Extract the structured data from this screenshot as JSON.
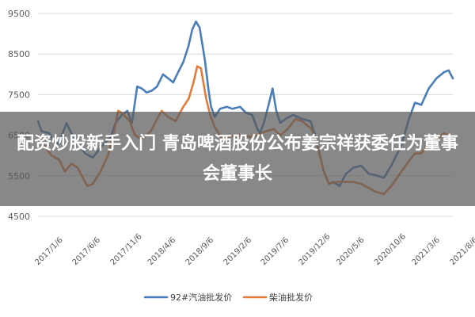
{
  "chart_data": {
    "type": "line",
    "ylim": [
      4500,
      9500
    ],
    "yticks": [
      4500,
      5500,
      6500,
      7500,
      8500,
      9500
    ],
    "xlim": [
      "2017-01-06",
      "2021-08-06"
    ],
    "x_tick_labels": [
      "2017/1/6",
      "2017/6/6",
      "2017/11/6",
      "2018/4/6",
      "2018/9/6",
      "2019/2/6",
      "2019/7/6",
      "2019/12/6",
      "2020/5/6",
      "2020/10/6",
      "2021/3/6",
      "2021/8/6"
    ],
    "grid": true,
    "legend_position": "bottom",
    "series": [
      {
        "name": "92#汽油批发价",
        "color": "#4a7ebb",
        "points": [
          [
            "2017-01-06",
            6850
          ],
          [
            "2017-01-20",
            6600
          ],
          [
            "2017-02-20",
            6550
          ],
          [
            "2017-03-20",
            6250
          ],
          [
            "2017-04-10",
            6450
          ],
          [
            "2017-05-01",
            6800
          ],
          [
            "2017-05-20",
            6550
          ],
          [
            "2017-06-15",
            6300
          ],
          [
            "2017-07-15",
            6050
          ],
          [
            "2017-08-15",
            5950
          ],
          [
            "2017-09-10",
            6150
          ],
          [
            "2017-10-01",
            6300
          ],
          [
            "2017-10-25",
            6450
          ],
          [
            "2017-11-15",
            6800
          ],
          [
            "2017-12-10",
            7000
          ],
          [
            "2018-01-01",
            7100
          ],
          [
            "2018-01-20",
            6800
          ],
          [
            "2018-02-10",
            7700
          ],
          [
            "2018-03-01",
            7650
          ],
          [
            "2018-03-20",
            7550
          ],
          [
            "2018-04-10",
            7600
          ],
          [
            "2018-05-01",
            7700
          ],
          [
            "2018-05-25",
            8000
          ],
          [
            "2018-06-15",
            7900
          ],
          [
            "2018-07-05",
            7800
          ],
          [
            "2018-07-25",
            8050
          ],
          [
            "2018-08-15",
            8300
          ],
          [
            "2018-09-05",
            8700
          ],
          [
            "2018-09-20",
            9100
          ],
          [
            "2018-10-05",
            9300
          ],
          [
            "2018-10-20",
            9150
          ],
          [
            "2018-11-10",
            8350
          ],
          [
            "2018-11-25",
            7600
          ],
          [
            "2018-12-05",
            7200
          ],
          [
            "2018-12-20",
            6950
          ],
          [
            "2019-01-10",
            7150
          ],
          [
            "2019-02-06",
            7200
          ],
          [
            "2019-03-01",
            7150
          ],
          [
            "2019-04-01",
            7200
          ],
          [
            "2019-04-25",
            7050
          ],
          [
            "2019-05-20",
            7000
          ],
          [
            "2019-06-10",
            6650
          ],
          [
            "2019-06-20",
            6550
          ],
          [
            "2019-07-06",
            6800
          ],
          [
            "2019-07-25",
            7250
          ],
          [
            "2019-08-10",
            7650
          ],
          [
            "2019-08-25",
            7100
          ],
          [
            "2019-09-10",
            6800
          ],
          [
            "2019-10-01",
            6900
          ],
          [
            "2019-11-01",
            7000
          ],
          [
            "2019-12-06",
            6900
          ],
          [
            "2020-01-10",
            6850
          ],
          [
            "2020-02-05",
            6350
          ],
          [
            "2020-03-01",
            5650
          ],
          [
            "2020-03-25",
            5300
          ],
          [
            "2020-04-10",
            5350
          ],
          [
            "2020-05-06",
            5250
          ],
          [
            "2020-06-01",
            5550
          ],
          [
            "2020-07-01",
            5700
          ],
          [
            "2020-08-01",
            5750
          ],
          [
            "2020-09-01",
            5550
          ],
          [
            "2020-10-06",
            5500
          ],
          [
            "2020-11-01",
            5450
          ],
          [
            "2020-12-01",
            5750
          ],
          [
            "2021-01-10",
            6250
          ],
          [
            "2021-02-10",
            6900
          ],
          [
            "2021-03-06",
            7300
          ],
          [
            "2021-04-01",
            7250
          ],
          [
            "2021-05-01",
            7650
          ],
          [
            "2021-06-01",
            7900
          ],
          [
            "2021-07-01",
            8050
          ],
          [
            "2021-07-20",
            8100
          ],
          [
            "2021-08-06",
            7900
          ]
        ]
      },
      {
        "name": "柴油批发价",
        "color": "#e07b39",
        "points": [
          [
            "2017-01-06",
            6500
          ],
          [
            "2017-02-01",
            6250
          ],
          [
            "2017-03-01",
            6000
          ],
          [
            "2017-04-01",
            5900
          ],
          [
            "2017-04-25",
            5600
          ],
          [
            "2017-05-20",
            5800
          ],
          [
            "2017-06-15",
            5700
          ],
          [
            "2017-07-10",
            5400
          ],
          [
            "2017-07-25",
            5250
          ],
          [
            "2017-08-15",
            5300
          ],
          [
            "2017-09-15",
            5600
          ],
          [
            "2017-10-15",
            6000
          ],
          [
            "2017-11-06",
            6500
          ],
          [
            "2017-11-25",
            7100
          ],
          [
            "2017-12-10",
            7050
          ],
          [
            "2018-01-10",
            6850
          ],
          [
            "2018-02-01",
            6500
          ],
          [
            "2018-02-25",
            6400
          ],
          [
            "2018-03-20",
            6500
          ],
          [
            "2018-04-06",
            6600
          ],
          [
            "2018-05-01",
            6900
          ],
          [
            "2018-05-20",
            7100
          ],
          [
            "2018-06-15",
            6950
          ],
          [
            "2018-07-15",
            6850
          ],
          [
            "2018-08-15",
            7200
          ],
          [
            "2018-09-06",
            7400
          ],
          [
            "2018-09-25",
            7800
          ],
          [
            "2018-10-10",
            8200
          ],
          [
            "2018-10-25",
            8150
          ],
          [
            "2018-11-15",
            7400
          ],
          [
            "2018-12-01",
            7000
          ],
          [
            "2018-12-20",
            6700
          ],
          [
            "2019-01-15",
            6450
          ],
          [
            "2019-02-06",
            6450
          ],
          [
            "2019-03-15",
            6500
          ],
          [
            "2019-04-15",
            6500
          ],
          [
            "2019-05-15",
            6450
          ],
          [
            "2019-06-10",
            6500
          ],
          [
            "2019-06-25",
            6550
          ],
          [
            "2019-07-15",
            6600
          ],
          [
            "2019-08-15",
            6650
          ],
          [
            "2019-09-10",
            6500
          ],
          [
            "2019-10-10",
            6650
          ],
          [
            "2019-11-10",
            6900
          ],
          [
            "2019-12-06",
            6850
          ],
          [
            "2020-01-15",
            6650
          ],
          [
            "2020-02-10",
            6150
          ],
          [
            "2020-03-06",
            5550
          ],
          [
            "2020-03-25",
            5300
          ],
          [
            "2020-04-20",
            5350
          ],
          [
            "2020-05-06",
            5350
          ],
          [
            "2020-06-01",
            5350
          ],
          [
            "2020-07-01",
            5350
          ],
          [
            "2020-08-01",
            5300
          ],
          [
            "2020-09-01",
            5200
          ],
          [
            "2020-10-01",
            5100
          ],
          [
            "2020-11-01",
            5050
          ],
          [
            "2020-12-01",
            5250
          ],
          [
            "2021-01-10",
            5600
          ],
          [
            "2021-02-15",
            5900
          ],
          [
            "2021-03-06",
            6050
          ],
          [
            "2021-04-01",
            6050
          ],
          [
            "2021-05-01",
            6300
          ],
          [
            "2021-06-01",
            6400
          ],
          [
            "2021-07-01",
            6550
          ],
          [
            "2021-08-06",
            6450
          ]
        ]
      }
    ]
  },
  "overlay": {
    "headline": "配资炒股新手入门 青岛啤酒股份公布姜宗祥获委任为董事会董事长"
  }
}
